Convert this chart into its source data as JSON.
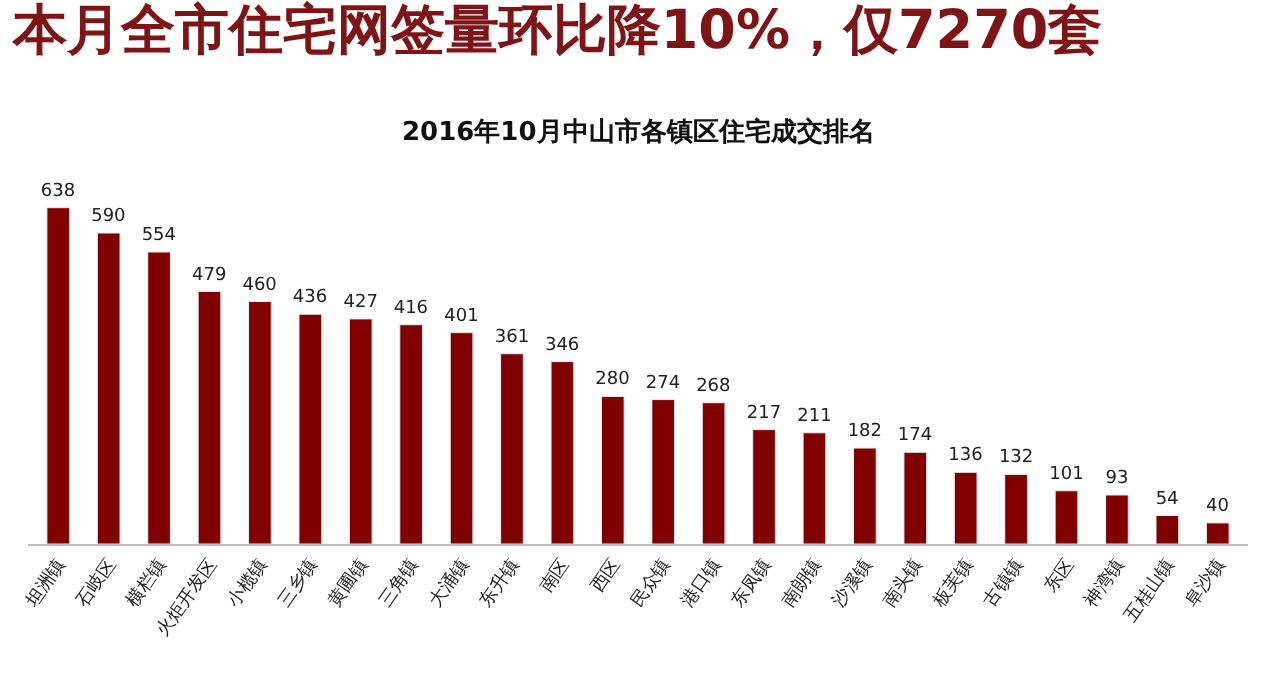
{
  "chart_data": {
    "type": "bar",
    "title": "本月全市住宅网签量环比降10%，仅7270套",
    "subtitle": "2016年10月中山市各镇区住宅成交排名",
    "categories": [
      "坦洲镇",
      "石岐区",
      "横栏镇",
      "火炬开发区",
      "小榄镇",
      "三乡镇",
      "黄圃镇",
      "三角镇",
      "大涌镇",
      "东升镇",
      "南区",
      "西区",
      "民众镇",
      "港口镇",
      "东凤镇",
      "南朗镇",
      "沙溪镇",
      "南头镇",
      "板芙镇",
      "古镇镇",
      "东区",
      "神湾镇",
      "五桂山镇",
      "阜沙镇"
    ],
    "values": [
      638,
      590,
      554,
      479,
      460,
      436,
      427,
      416,
      401,
      361,
      346,
      280,
      274,
      268,
      217,
      211,
      182,
      174,
      136,
      132,
      101,
      93,
      54,
      40
    ],
    "color": "#800000",
    "data_labels": true
  }
}
